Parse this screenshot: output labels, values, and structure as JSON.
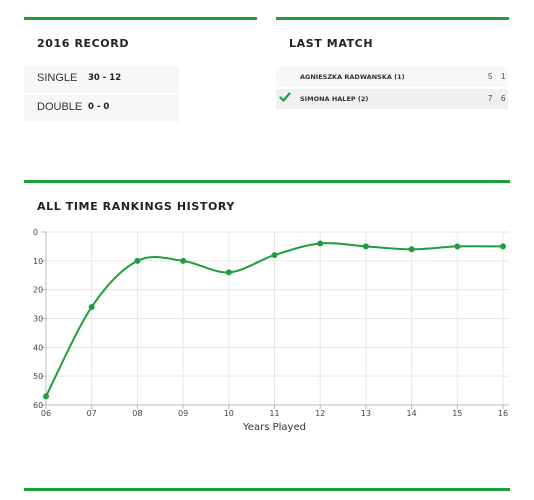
{
  "colors": {
    "accent": "#1f9e3c",
    "row_bg": "#f7f7f7",
    "grid": "#e6e6e6"
  },
  "record": {
    "title": "2016 RECORD",
    "rows": [
      {
        "label": "SINGLE",
        "value": "30 - 12"
      },
      {
        "label": "DOUBLE",
        "value": "0 - 0"
      }
    ]
  },
  "last_match": {
    "title": "LAST MATCH",
    "players": [
      {
        "name": "AGNIESZKA RADWANSKA (1)",
        "set1": "5",
        "set2": "1",
        "winner": false
      },
      {
        "name": "SIMONA HALEP (2)",
        "set1": "7",
        "set2": "6",
        "winner": true,
        "icon": "check-icon"
      }
    ]
  },
  "rankings": {
    "title": "ALL TIME RANKINGS HISTORY"
  },
  "chart_data": {
    "type": "line",
    "title": "",
    "xlabel": "Years Played",
    "ylabel": "",
    "categories": [
      "06",
      "07",
      "08",
      "09",
      "10",
      "11",
      "12",
      "13",
      "14",
      "15",
      "16"
    ],
    "series": [
      {
        "values": [
          57,
          26,
          10,
          10,
          14,
          8,
          4,
          5,
          6,
          5,
          5
        ],
        "color": "#1f9e3c"
      }
    ],
    "y_ticks": [
      0,
      10,
      20,
      30,
      40,
      50,
      60
    ],
    "ylim": [
      0,
      60
    ],
    "y_reversed": true,
    "grid": true,
    "smooth": true
  }
}
